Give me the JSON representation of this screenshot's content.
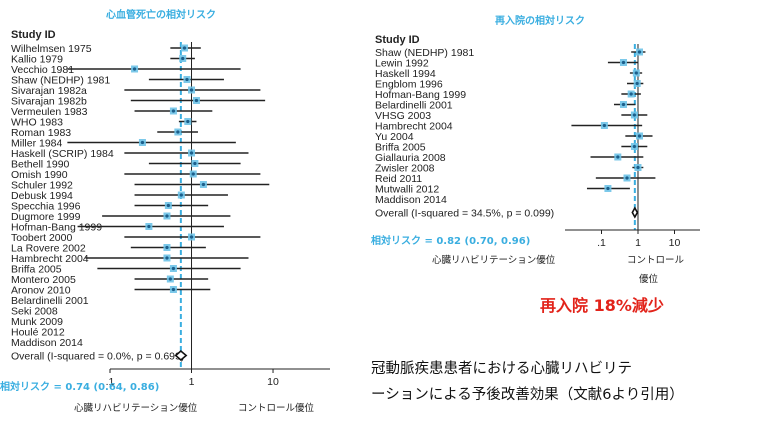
{
  "chart_data": [
    {
      "type": "forest",
      "title": "心血管死亡の相対リスク",
      "scale": "log",
      "xlim": [
        0.1,
        50
      ],
      "xticks": [
        {
          "v": 0.1,
          "label": ".1"
        },
        {
          "v": 1,
          "label": "1"
        },
        {
          "v": 10,
          "label": "10"
        }
      ],
      "header": "Study ID",
      "studies": [
        {
          "name": "Wilhelmsen 1975",
          "rr": 0.82,
          "lo": 0.55,
          "hi": 1.3
        },
        {
          "name": "Kallio 1979",
          "rr": 0.78,
          "lo": 0.55,
          "hi": 1.1
        },
        {
          "name": "Vecchio 1981",
          "rr": 0.2,
          "lo": 0.03,
          "hi": 4.0
        },
        {
          "name": "Shaw (NEDHP) 1981",
          "rr": 0.88,
          "lo": 0.3,
          "hi": 2.5
        },
        {
          "name": "Sivarajan 1982a",
          "rr": 1.0,
          "lo": 0.15,
          "hi": 7.0
        },
        {
          "name": "Sivarajan 1982b",
          "rr": 1.15,
          "lo": 0.18,
          "hi": 8.0
        },
        {
          "name": "Vermeulen 1983",
          "rr": 0.6,
          "lo": 0.2,
          "hi": 1.8
        },
        {
          "name": "WHO 1983",
          "rr": 0.9,
          "lo": 0.7,
          "hi": 1.15
        },
        {
          "name": "Roman 1983",
          "rr": 0.68,
          "lo": 0.38,
          "hi": 1.2
        },
        {
          "name": "Miller 1984",
          "rr": 0.25,
          "lo": 0.03,
          "hi": 3.5
        },
        {
          "name": "Haskell (SCRIP) 1984",
          "rr": 1.0,
          "lo": 0.15,
          "hi": 5.0
        },
        {
          "name": "Bethell 1990",
          "rr": 1.1,
          "lo": 0.3,
          "hi": 4.0
        },
        {
          "name": "Omish 1990",
          "rr": 1.05,
          "lo": 0.15,
          "hi": 7.0
        },
        {
          "name": "Schuler 1992",
          "rr": 1.4,
          "lo": 0.2,
          "hi": 9.0
        },
        {
          "name": "Debusk 1994",
          "rr": 0.75,
          "lo": 0.2,
          "hi": 2.8
        },
        {
          "name": "Specchia 1996",
          "rr": 0.52,
          "lo": 0.2,
          "hi": 1.6
        },
        {
          "name": "Dugmore 1999",
          "rr": 0.5,
          "lo": 0.08,
          "hi": 3.0
        },
        {
          "name": "Hofman-Bang 1999",
          "rr": 0.3,
          "lo": 0.04,
          "hi": 2.5
        },
        {
          "name": "Toobert 2000",
          "rr": 1.0,
          "lo": 0.15,
          "hi": 7.0
        },
        {
          "name": "La Rovere 2002",
          "rr": 0.5,
          "lo": 0.18,
          "hi": 1.5
        },
        {
          "name": "Hambrecht 2004",
          "rr": 0.5,
          "lo": 0.05,
          "hi": 5.0
        },
        {
          "name": "Briffa 2005",
          "rr": 0.6,
          "lo": 0.07,
          "hi": 4.0
        },
        {
          "name": "Montero 2005",
          "rr": 0.55,
          "lo": 0.2,
          "hi": 1.6
        },
        {
          "name": "Aronov 2010",
          "rr": 0.6,
          "lo": 0.2,
          "hi": 1.7
        },
        {
          "name": "Belardinelli 2001",
          "rr": null,
          "lo": null,
          "hi": null
        },
        {
          "name": "Seki 2008",
          "rr": null,
          "lo": null,
          "hi": null
        },
        {
          "name": "Munk 2009",
          "rr": null,
          "lo": null,
          "hi": null
        },
        {
          "name": "Houlé 2012",
          "rr": null,
          "lo": null,
          "hi": null
        },
        {
          "name": "Maddison 2014",
          "rr": null,
          "lo": null,
          "hi": null
        }
      ],
      "overall": {
        "label": "Overall (I-squared = 0.0%, p = 0.699)",
        "rr": 0.74,
        "lo": 0.64,
        "hi": 0.86
      },
      "pooled_label": "相対リスク = 0.74 (0.64, 0.86)",
      "favors_left": "心臓リハビリテーション優位",
      "favors_right": "コントロール優位"
    },
    {
      "type": "forest",
      "title": "再入院の相対リスク",
      "scale": "log",
      "xlim": [
        0.01,
        50
      ],
      "xticks": [
        {
          "v": 0.1,
          "label": ".1"
        },
        {
          "v": 1,
          "label": "1"
        },
        {
          "v": 10,
          "label": "10"
        }
      ],
      "header": "Study ID",
      "studies": [
        {
          "name": "Shaw (NEDHP) 1981",
          "rr": 1.1,
          "lo": 0.65,
          "hi": 1.6
        },
        {
          "name": "Lewin 1992",
          "rr": 0.4,
          "lo": 0.15,
          "hi": 1.0
        },
        {
          "name": "Haskell 1994",
          "rr": 0.9,
          "lo": 0.6,
          "hi": 1.3
        },
        {
          "name": "Engblom 1996",
          "rr": 0.95,
          "lo": 0.5,
          "hi": 1.4
        },
        {
          "name": "Hofman-Bang 1999",
          "rr": 0.65,
          "lo": 0.35,
          "hi": 1.2
        },
        {
          "name": "Belardinelli 2001",
          "rr": 0.4,
          "lo": 0.22,
          "hi": 0.85
        },
        {
          "name": "VHSG 2003",
          "rr": 0.8,
          "lo": 0.35,
          "hi": 1.8
        },
        {
          "name": "Hambrecht 2004",
          "rr": 0.12,
          "lo": 0.015,
          "hi": 1.3
        },
        {
          "name": "Yu 2004",
          "rr": 1.1,
          "lo": 0.45,
          "hi": 2.5
        },
        {
          "name": "Briffa 2005",
          "rr": 0.8,
          "lo": 0.35,
          "hi": 1.8
        },
        {
          "name": "Giallauria 2008",
          "rr": 0.28,
          "lo": 0.05,
          "hi": 1.4
        },
        {
          "name": "Zwisler 2008",
          "rr": 1.0,
          "lo": 0.7,
          "hi": 1.4
        },
        {
          "name": "Reid 2011",
          "rr": 0.5,
          "lo": 0.07,
          "hi": 3.0
        },
        {
          "name": "Mutwalli 2012",
          "rr": 0.15,
          "lo": 0.04,
          "hi": 0.6
        },
        {
          "name": "Maddison 2014",
          "rr": null,
          "lo": null,
          "hi": null
        }
      ],
      "overall": {
        "label": "Overall (I-squared = 34.5%, p = 0.099)",
        "rr": 0.82,
        "lo": 0.7,
        "hi": 0.96
      },
      "pooled_label": "相対リスク = 0.82 (0.70, 0.96)",
      "favors_left": "心臓リハビリテーション優位",
      "favors_right": "コントロール優位"
    }
  ],
  "annotation": {
    "reduction": "再入院 18%減少",
    "caption_line1": "冠動脈疾患患者における心臓リハビリテ",
    "caption_line2": "ーションによる予後改善効果（文献6より引用）"
  },
  "colors": {
    "accent": "#3aaee0",
    "marker": "#6ec3e8",
    "ci_line": "#222222",
    "highlight": "#e2231a"
  }
}
